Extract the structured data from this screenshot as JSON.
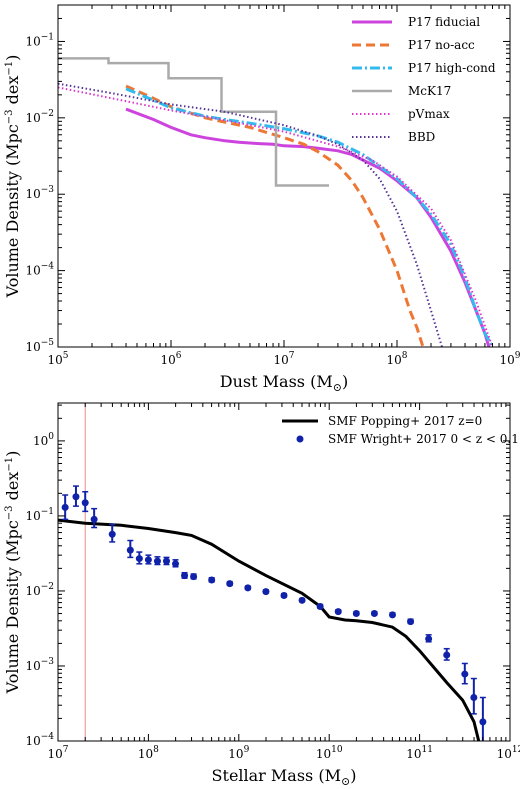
{
  "chart_data": [
    {
      "type": "line",
      "xlabel": "Dust Mass (M",
      "xlabel_sub": "⊙",
      "xlabel_end": ")",
      "ylabel": "Volume Density (Mpc",
      "ylabel_sup": "−3",
      "ylabel_mid": " dex",
      "ylabel_sup2": "−1",
      "ylabel_end": ")",
      "xscale": "log",
      "yscale": "log",
      "xlim": [
        100000,
        1000000000
      ],
      "ylim": [
        1e-05,
        0.3
      ],
      "x_ticks": [
        {
          "value": 100000,
          "base": "10",
          "exp": "5"
        },
        {
          "value": 1000000,
          "base": "10",
          "exp": "6"
        },
        {
          "value": 10000000,
          "base": "10",
          "exp": "7"
        },
        {
          "value": 100000000,
          "base": "10",
          "exp": "8"
        },
        {
          "value": 1000000000,
          "base": "10",
          "exp": "9"
        }
      ],
      "y_ticks": [
        {
          "value": 1e-05,
          "base": "10",
          "exp": "-5"
        },
        {
          "value": 0.0001,
          "base": "10",
          "exp": "-4"
        },
        {
          "value": 0.001,
          "base": "10",
          "exp": "-3"
        },
        {
          "value": 0.01,
          "base": "10",
          "exp": "-2"
        },
        {
          "value": 0.1,
          "base": "10",
          "exp": "-1"
        }
      ],
      "legend_position": "top-right",
      "series": [
        {
          "name": "P17 fiducial",
          "color": "#cc44dd",
          "style": "solid",
          "width": 3,
          "x": [
            400000,
            700000,
            1000000,
            1500000,
            2000000,
            3000000,
            4000000,
            6000000,
            8000000,
            10000000,
            15000000,
            20000000,
            30000000,
            40000000,
            50000000,
            70000000,
            100000000,
            150000000,
            200000000,
            300000000,
            400000000,
            500000000,
            600000000,
            650000000
          ],
          "y": [
            0.013,
            0.0095,
            0.0075,
            0.006,
            0.0055,
            0.005,
            0.0048,
            0.0046,
            0.0045,
            0.0043,
            0.0042,
            0.004,
            0.0037,
            0.0033,
            0.0028,
            0.0022,
            0.0015,
            0.0009,
            0.0005,
            0.00018,
            7e-05,
            3e-05,
            1.5e-05,
            1e-05
          ]
        },
        {
          "name": "P17 no-acc",
          "color": "#ee7733",
          "style": "dashed",
          "width": 3,
          "x": [
            400000,
            700000,
            1000000,
            2000000,
            3000000,
            5000000,
            10000000,
            15000000,
            20000000,
            30000000,
            40000000,
            50000000,
            70000000,
            100000000,
            130000000,
            150000000,
            170000000
          ],
          "y": [
            0.026,
            0.018,
            0.014,
            0.01,
            0.0088,
            0.0075,
            0.0055,
            0.0045,
            0.0036,
            0.0024,
            0.0015,
            0.0009,
            0.00035,
            0.0001,
            3e-05,
            1.8e-05,
            1e-05
          ]
        },
        {
          "name": "P17 high-cond",
          "color": "#33bbee",
          "style": "dashdot",
          "width": 3,
          "x": [
            400000,
            700000,
            1000000,
            2000000,
            3000000,
            5000000,
            10000000,
            20000000,
            30000000,
            50000000,
            100000000,
            150000000,
            200000000,
            300000000,
            400000000,
            500000000,
            600000000,
            700000000
          ],
          "y": [
            0.024,
            0.017,
            0.0135,
            0.0105,
            0.0095,
            0.0085,
            0.0072,
            0.0058,
            0.0048,
            0.0033,
            0.0016,
            0.0009,
            0.00055,
            0.00022,
            8e-05,
            3e-05,
            1.5e-05,
            1e-05
          ]
        },
        {
          "name": "McK17",
          "color": "#aaaaaa",
          "style": "solid",
          "width": 2.5,
          "step": true,
          "x": [
            100000,
            280000,
            280000,
            950000,
            950000,
            2800000,
            2800000,
            8500000,
            8500000,
            25000000
          ],
          "y": [
            0.06,
            0.06,
            0.052,
            0.052,
            0.033,
            0.033,
            0.012,
            0.012,
            0.0013,
            0.0013
          ]
        },
        {
          "name": "pVmax",
          "color": "#dd33cc",
          "style": "dotted",
          "width": 2,
          "x": [
            100000,
            300000,
            1000000,
            3000000,
            10000000,
            30000000,
            60000000,
            100000000,
            200000000,
            300000000,
            500000000,
            700000000
          ],
          "y": [
            0.025,
            0.018,
            0.0125,
            0.0093,
            0.0066,
            0.0042,
            0.0028,
            0.0017,
            0.00065,
            0.00025,
            4e-05,
            1e-05
          ]
        },
        {
          "name": "BBD",
          "color": "#553399",
          "style": "dotted",
          "width": 2,
          "x": [
            100000,
            300000,
            1000000,
            3000000,
            10000000,
            20000000,
            30000000,
            50000000,
            70000000,
            100000000,
            150000000,
            200000000,
            250000000
          ],
          "y": [
            0.028,
            0.021,
            0.015,
            0.012,
            0.008,
            0.0058,
            0.0045,
            0.0028,
            0.0016,
            0.0006,
            0.00012,
            3e-05,
            1e-05
          ]
        }
      ]
    },
    {
      "type": "scatter",
      "xlabel": "Stellar Mass (M",
      "xlabel_sub": "⊙",
      "xlabel_end": ")",
      "ylabel": "Volume Density (Mpc",
      "ylabel_sup": "−3",
      "ylabel_mid": " dex",
      "ylabel_sup2": "−1",
      "ylabel_end": ")",
      "xscale": "log",
      "yscale": "log",
      "xlim": [
        10000000,
        1000000000000
      ],
      "ylim": [
        0.0001,
        3.2
      ],
      "x_ticks": [
        {
          "value": 10000000,
          "base": "10",
          "exp": "7"
        },
        {
          "value": 100000000,
          "base": "10",
          "exp": "8"
        },
        {
          "value": 1000000000,
          "base": "10",
          "exp": "9"
        },
        {
          "value": 10000000000,
          "base": "10",
          "exp": "10"
        },
        {
          "value": 100000000000,
          "base": "10",
          "exp": "11"
        },
        {
          "value": 1000000000000,
          "base": "10",
          "exp": "12"
        }
      ],
      "y_ticks": [
        {
          "value": 0.0001,
          "base": "10",
          "exp": "-4"
        },
        {
          "value": 0.001,
          "base": "10",
          "exp": "-3"
        },
        {
          "value": 0.01,
          "base": "10",
          "exp": "-2"
        },
        {
          "value": 0.1,
          "base": "10",
          "exp": "-1"
        },
        {
          "value": 1,
          "base": "10",
          "exp": "0"
        }
      ],
      "vline": {
        "x": 20000000,
        "color": "#ee8888"
      },
      "legend_position": "top-right",
      "line_series": {
        "name": "SMF Popping+ 2017 z=0",
        "color": "#000000",
        "x": [
          10000000,
          20000000,
          50000000,
          100000000,
          200000000,
          300000000,
          500000000,
          1000000000,
          2000000000,
          5000000000,
          8000000000,
          10000000000,
          15000000000,
          20000000000,
          30000000000,
          50000000000,
          70000000000,
          100000000000,
          150000000000,
          200000000000,
          300000000000,
          400000000000,
          450000000000
        ],
        "y": [
          0.088,
          0.08,
          0.075,
          0.068,
          0.06,
          0.055,
          0.042,
          0.025,
          0.016,
          0.0093,
          0.0062,
          0.0045,
          0.0041,
          0.004,
          0.0038,
          0.0033,
          0.0025,
          0.0016,
          0.0009,
          0.0006,
          0.00035,
          0.00018,
          0.0001
        ]
      },
      "points": {
        "name": "SMF Wright+ 2017 0 < z < 0.1",
        "color": "#1122aa",
        "x": [
          12000000,
          15800000,
          20000000,
          25100000,
          39800000,
          63100000,
          79400000,
          100000000,
          125900000,
          158500000,
          199500000,
          251200000,
          316200000,
          501200000,
          794300000,
          1259000000,
          1995000000,
          3162000000,
          5012000000,
          7943000000,
          12590000000,
          19950000000,
          31620000000,
          50120000000,
          79430000000,
          125900000000,
          199500000000,
          316200000000,
          398100000000,
          501200000000
        ],
        "y": [
          0.13,
          0.18,
          0.15,
          0.09,
          0.057,
          0.035,
          0.027,
          0.026,
          0.025,
          0.025,
          0.023,
          0.016,
          0.0155,
          0.014,
          0.0125,
          0.011,
          0.0098,
          0.0087,
          0.0075,
          0.0062,
          0.0053,
          0.005,
          0.005,
          0.0048,
          0.0039,
          0.0023,
          0.0014,
          0.00078,
          0.00038,
          0.00018
        ],
        "err_lo": [
          0.04,
          0.045,
          0.035,
          0.02,
          0.012,
          0.007,
          0.004,
          0.003,
          0.0025,
          0.0025,
          0.002,
          0.0012,
          0.001,
          0.0008,
          0.0006,
          0.0005,
          0.0004,
          0.0004,
          0.0003,
          0.0003,
          0.0002,
          0.0002,
          0.0002,
          0.0002,
          0.0002,
          0.0002,
          0.0002,
          0.0002,
          0.00015,
          0.0001
        ],
        "err_hi": [
          0.06,
          0.07,
          0.06,
          0.035,
          0.02,
          0.012,
          0.006,
          0.004,
          0.0035,
          0.003,
          0.003,
          0.0015,
          0.0013,
          0.001,
          0.0008,
          0.0006,
          0.0005,
          0.0005,
          0.0004,
          0.0004,
          0.0003,
          0.0003,
          0.0003,
          0.0003,
          0.0003,
          0.0003,
          0.0003,
          0.0003,
          0.0003,
          0.0002
        ]
      }
    }
  ]
}
